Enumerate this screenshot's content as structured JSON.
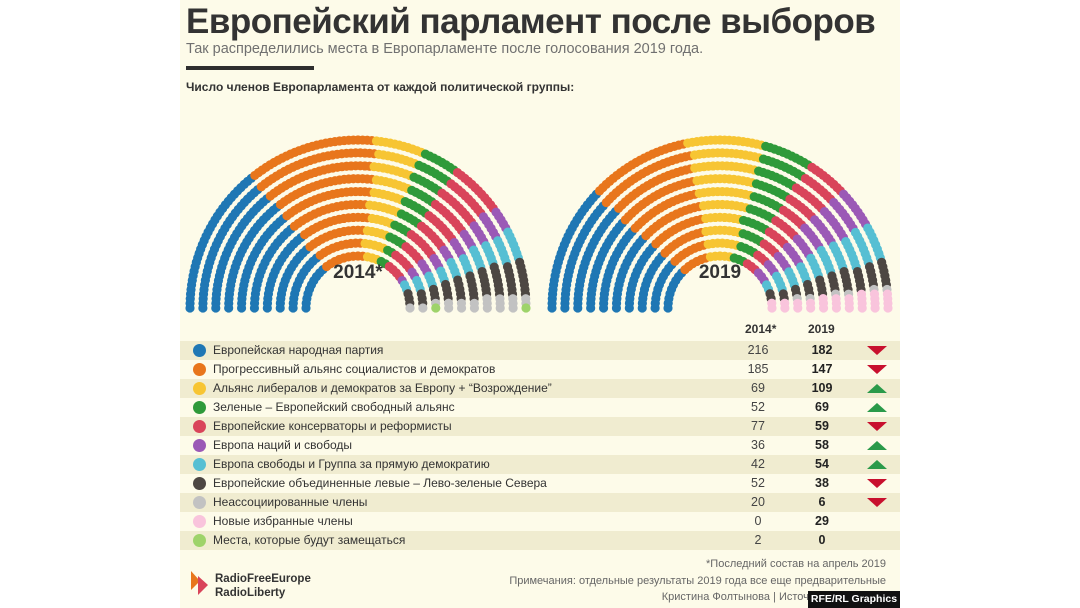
{
  "header": {
    "title": "Европейский парламент после выборов",
    "subtitle": "Так распределились места в Европарламенте после голосования 2019 года.",
    "chart_label": "Число членов Европарламента от каждой политической группы:"
  },
  "chart_data": {
    "type": "hemicycle",
    "series": [
      {
        "year": "2014*"
      },
      {
        "year": "2019"
      }
    ],
    "columns": [
      "2014*",
      "2019"
    ],
    "groups": [
      {
        "name": "Европейская народная партия",
        "color": "#1f77b4",
        "v2014": 216,
        "v2019": 182,
        "trend": "down"
      },
      {
        "name": "Прогрессивный альянс социалистов и демократов",
        "color": "#e8761c",
        "v2014": 185,
        "v2019": 147,
        "trend": "down"
      },
      {
        "name": "Альянс либералов и демократов за Европу + “Возрождение”",
        "color": "#f7c533",
        "v2014": 69,
        "v2019": 109,
        "trend": "up"
      },
      {
        "name": "Зеленые – Европейский свободный альянс",
        "color": "#2f9a3a",
        "v2014": 52,
        "v2019": 69,
        "trend": "up"
      },
      {
        "name": "Европейские консерваторы и реформисты",
        "color": "#d9445a",
        "v2014": 77,
        "v2019": 59,
        "trend": "down"
      },
      {
        "name": "Европа наций и свободы",
        "color": "#9b59b6",
        "v2014": 36,
        "v2019": 58,
        "trend": "up"
      },
      {
        "name": "Европа свободы и Группа за прямую демократию",
        "color": "#56bfd3",
        "v2014": 42,
        "v2019": 54,
        "trend": "up"
      },
      {
        "name": "Европейские объединенные левые – Лево-зеленые Севера",
        "color": "#4d4743",
        "v2014": 52,
        "v2019": 38,
        "trend": "down"
      },
      {
        "name": "Неассоциированные члены",
        "color": "#c2c2c2",
        "v2014": 20,
        "v2019": 6,
        "trend": "down"
      },
      {
        "name": "Новые избранные члены",
        "color": "#f9c4dc",
        "v2014": 0,
        "v2019": 29,
        "trend": ""
      },
      {
        "name": "Места, которые будут замещаться",
        "color": "#9ed36a",
        "v2014": 2,
        "v2019": 0,
        "trend": ""
      }
    ]
  },
  "footer": {
    "footnote": "*Последний состав на апрель 2019",
    "notes": "Примечания: отдельные результаты 2019 года все еще предварительные",
    "credits": "Кристина Фолтынова | Источник: Европейск",
    "logo_line1": "RadioFreeEurope",
    "logo_line2": "RadioLiberty",
    "badge": "RFE/RL Graphics"
  }
}
